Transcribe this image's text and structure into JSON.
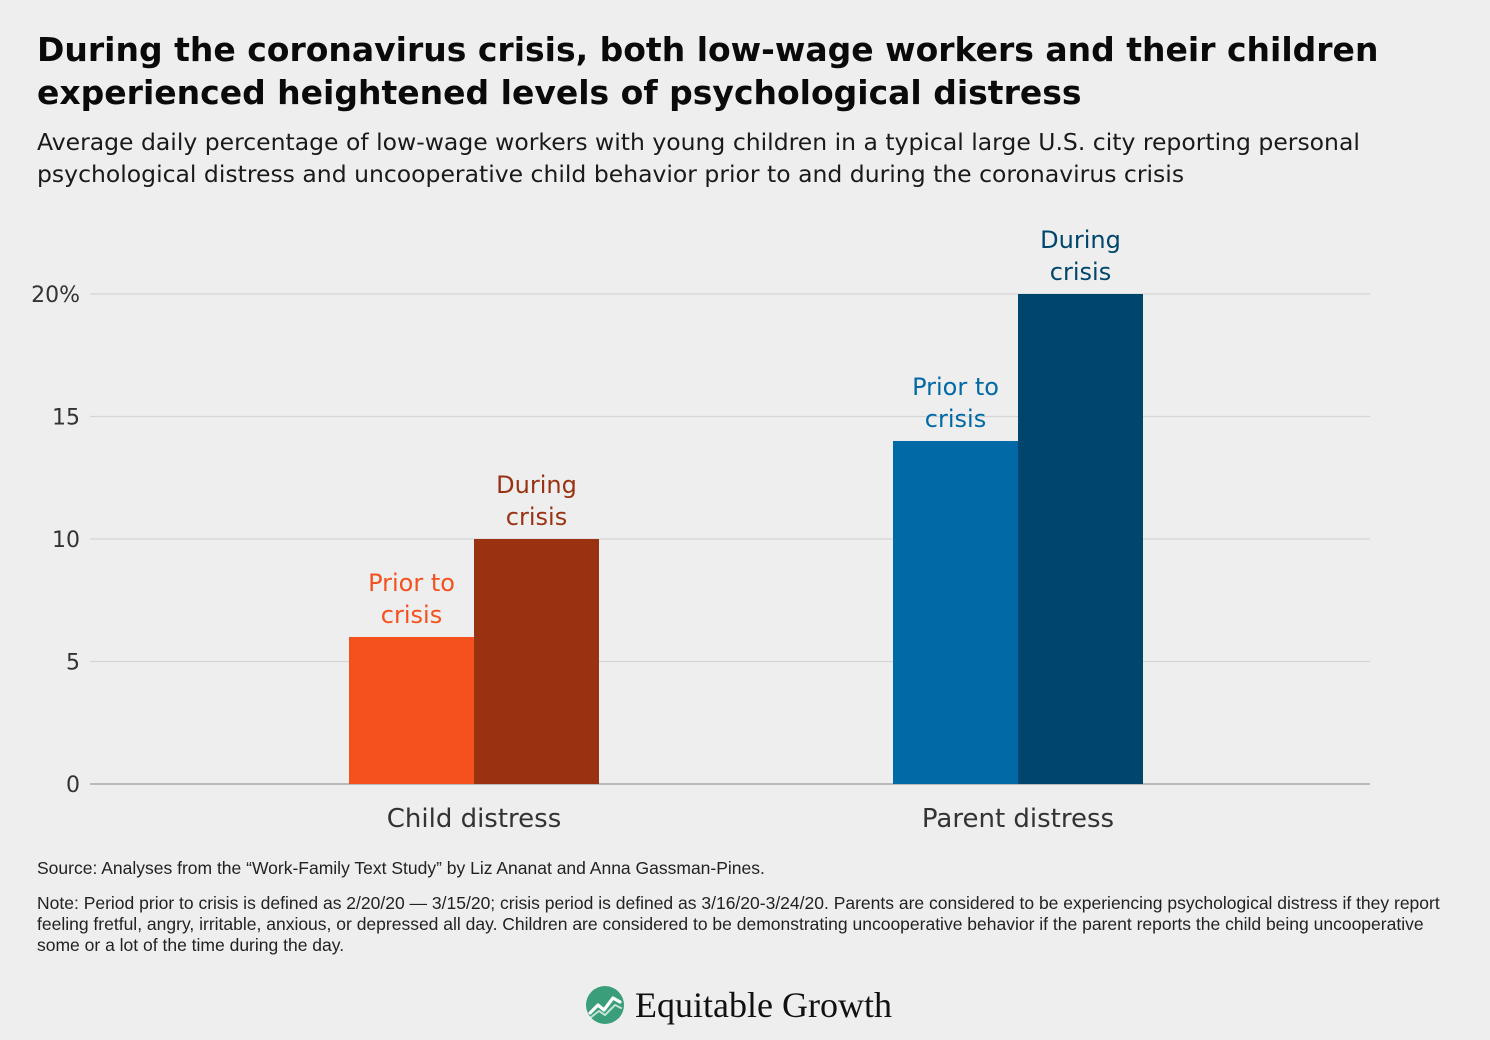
{
  "title": "During the coronavirus crisis, both low-wage workers and their children experienced heightened levels of psychological distress",
  "subtitle": "Average daily percentage of low-wage workers with young children in a typical large U.S. city reporting personal psychological distress and uncooperative child behavior prior to and during the coronavirus crisis",
  "source": "Source: Analyses from the “Work-Family Text Study” by Liz Ananat and Anna Gassman-Pines.",
  "note": "Note: Period prior to crisis is defined as 2/20/20 — 3/15/20; crisis period is defined as 3/16/20-3/24/20. Parents are considered to be experiencing psychological distress if they report feeling fretful, angry, irritable, anxious, or depressed all day. Children are considered to be demonstrating uncooperative behavior if the parent reports the child being uncooperative some or a lot of the time during the day.",
  "logo": {
    "text": "Equitable Growth",
    "icon": "equitable-growth-logo-icon",
    "color": "#3a9e7a"
  },
  "chart_data": {
    "type": "bar",
    "categories": [
      "Child distress",
      "Parent distress"
    ],
    "y_ticks": [
      "0",
      "5",
      "10",
      "15",
      "20%"
    ],
    "ylim": [
      0,
      20
    ],
    "grid": true,
    "bars": [
      {
        "category": "Child distress",
        "value": 6,
        "label": [
          "Prior to",
          "crisis"
        ],
        "color": "#f4511e",
        "label_color": "#f4511e"
      },
      {
        "category": "Child distress",
        "value": 10,
        "label": [
          "During",
          "crisis"
        ],
        "color": "#9a3212",
        "label_color": "#9a3212"
      },
      {
        "category": "Parent distress",
        "value": 14,
        "label": [
          "Prior to",
          "crisis"
        ],
        "color": "#0069a6",
        "label_color": "#0069a6"
      },
      {
        "category": "Parent distress",
        "value": 20,
        "label": [
          "During",
          "crisis"
        ],
        "color": "#00456b",
        "label_color": "#00456b"
      }
    ],
    "xlabel": "",
    "ylabel": ""
  }
}
